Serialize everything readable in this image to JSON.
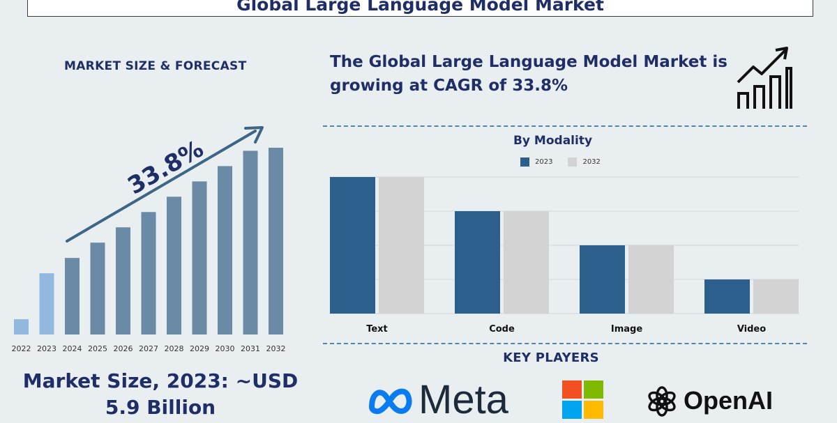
{
  "title": "Global Large Language Model Market",
  "left_panel": {
    "heading": "MARKET SIZE & FORECAST",
    "cagr_label": "33.8%",
    "market_size_line1": "Market Size, 2023: ~USD",
    "market_size_line2": "5.9 Billion"
  },
  "headline": "The Global Large Language Model Market is growing at CAGR of 33.8%",
  "key_players": {
    "heading": "KEY PLAYERS",
    "logos": [
      {
        "name": "Meta",
        "text": "Meta",
        "icon": "meta-infinity-logo"
      },
      {
        "name": "Microsoft",
        "icon": "microsoft-four-squares-logo"
      },
      {
        "name": "OpenAI",
        "text": "OpenAI",
        "icon": "openai-knot-logo"
      }
    ]
  },
  "colors": {
    "navy": "#1f2e66",
    "bar_2023": "#2d5f8d",
    "bar_2032": "#d3d3d3",
    "forecast_bar": "#6a8aa5",
    "forecast_bar_light": "#93b8de",
    "arrow": "#3c6586"
  },
  "chart_data": [
    {
      "type": "bar",
      "title": "",
      "categories": [
        "2022",
        "2023",
        "2024",
        "2025",
        "2026",
        "2027",
        "2028",
        "2029",
        "2030",
        "2031",
        "2032"
      ],
      "values": [
        1,
        4,
        5,
        6,
        7,
        8,
        9,
        10,
        11,
        12,
        12.2
      ],
      "highlighted_categories": [
        "2022",
        "2023"
      ],
      "annotation": "33.8%",
      "grid": false,
      "legend": "none"
    },
    {
      "type": "bar",
      "title": "By Modality",
      "categories": [
        "Text",
        "Code",
        "Image",
        "Video"
      ],
      "series": [
        {
          "name": "2023",
          "values": [
            4,
            3,
            2,
            1
          ]
        },
        {
          "name": "2032",
          "values": [
            4,
            3,
            2,
            1
          ]
        }
      ],
      "ylim": [
        0,
        4
      ],
      "grid": true,
      "legend": "top-center"
    }
  ]
}
